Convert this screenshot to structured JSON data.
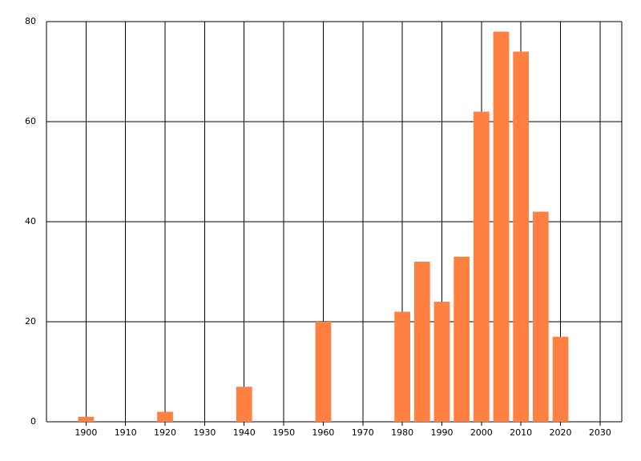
{
  "chart_data": {
    "type": "bar",
    "x": [
      1900,
      1920,
      1940,
      1960,
      1980,
      1985,
      1990,
      1995,
      2000,
      2005,
      2010,
      2015,
      2020
    ],
    "values": [
      1,
      2,
      7,
      20,
      22,
      32,
      24,
      33,
      62,
      78,
      74,
      42,
      17
    ],
    "color": "#ff8040",
    "xlim": [
      1890,
      2035.5
    ],
    "xticks": [
      1900,
      1910,
      1920,
      1930,
      1940,
      1950,
      1960,
      1970,
      1980,
      1990,
      2000,
      2010,
      2020,
      2030
    ],
    "ylim": [
      0,
      80
    ],
    "yticks": [
      0,
      20,
      40,
      60,
      80
    ],
    "grid": true
  }
}
